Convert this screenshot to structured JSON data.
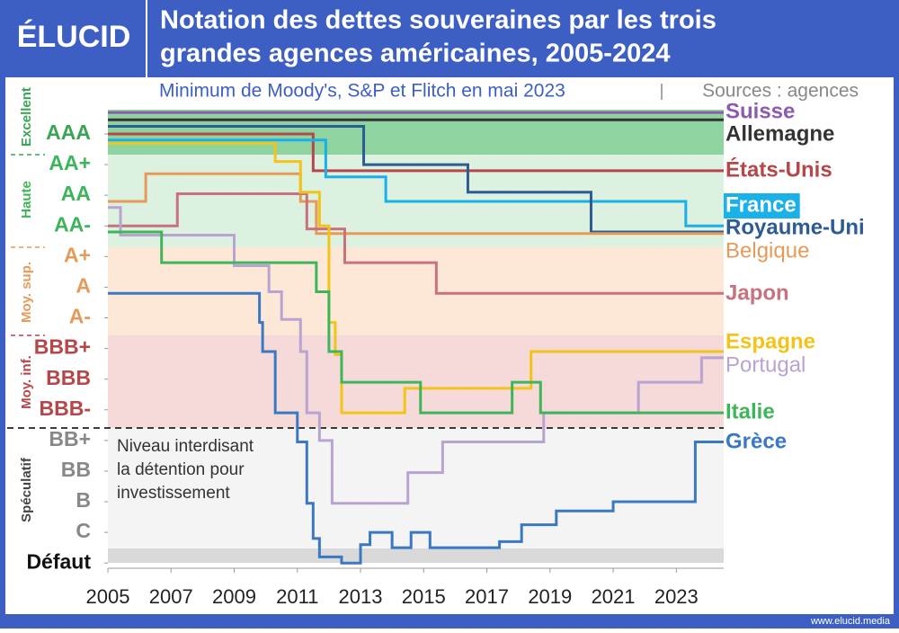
{
  "logo": "ÉLUCID",
  "footer": "www.elucid.media",
  "chart_data": {
    "type": "line",
    "step": "post",
    "title": [
      "Notation des dettes souveraines par les trois",
      "grandes agences américaines, 2005-2024"
    ],
    "subtitle": "Minimum de Moody's, S&P et Flitch en mai 2023",
    "source": "Sources : agences",
    "zones": [
      "Excellent",
      "Haute",
      "Moy. sup.",
      "Moy. inf.",
      "Spéculatif"
    ],
    "annotation": [
      "Niveau interdisant",
      "la détention pour",
      "investissement"
    ],
    "xlim": [
      2005,
      2024.5
    ],
    "xticks": [
      2005,
      2007,
      2009,
      2011,
      2013,
      2015,
      2017,
      2019,
      2021,
      2023
    ],
    "ylim": [
      -0.17,
      14.85
    ],
    "yticks": [
      {
        "value": 14,
        "label": "AAA"
      },
      {
        "value": 13,
        "label": "AA+"
      },
      {
        "value": 12,
        "label": "AA"
      },
      {
        "value": 11,
        "label": "AA-"
      },
      {
        "value": 10,
        "label": "A+"
      },
      {
        "value": 9,
        "label": "A"
      },
      {
        "value": 8,
        "label": "A-"
      },
      {
        "value": 7,
        "label": "BBB+"
      },
      {
        "value": 6,
        "label": "BBB"
      },
      {
        "value": 5,
        "label": "BBB-"
      },
      {
        "value": 4,
        "label": "BB+"
      },
      {
        "value": 3,
        "label": "BB"
      },
      {
        "value": 2,
        "label": "B"
      },
      {
        "value": 1,
        "label": "C"
      },
      {
        "value": 0,
        "label": "Défaut"
      }
    ],
    "series": [
      {
        "name": "Suisse",
        "color": "#8e5ab0",
        "x": [
          2005
        ],
        "values": [
          14.7
        ]
      },
      {
        "name": "Allemagne",
        "color": "#333333",
        "x": [
          2005
        ],
        "values": [
          14.46
        ]
      },
      {
        "name": "États-Unis",
        "color": "#b5474a",
        "x": [
          2005,
          2011.5
        ],
        "values": [
          14.0,
          12.8
        ]
      },
      {
        "name": "France",
        "color": "#1ab0e8",
        "x": [
          2005,
          2011.9,
          2013.8,
          2023.3
        ],
        "values": [
          13.8,
          12.6,
          11.8,
          11.0
        ]
      },
      {
        "name": "Royaume-Uni",
        "color": "#2d5b94",
        "x": [
          2005,
          2013.1,
          2016.4,
          2020.3
        ],
        "values": [
          14.25,
          13.0,
          12.1,
          10.8
        ]
      },
      {
        "name": "Belgique",
        "color": "#e69a5a",
        "x": [
          2005,
          2006.2,
          2011.1,
          2011.6
        ],
        "values": [
          11.8,
          12.7,
          11.8,
          10.75
        ]
      },
      {
        "name": "Japon",
        "color": "#c8727f",
        "x": [
          2005,
          2007.2,
          2011.3,
          2012.5,
          2015.4
        ],
        "values": [
          11.0,
          12.05,
          10.9,
          9.8,
          8.8
        ]
      },
      {
        "name": "Espagne",
        "color": "#f2c419",
        "x": [
          2005,
          2010.3,
          2011.1,
          2011.7,
          2012.0,
          2012.2,
          2012.4,
          2014.4,
          2018.4
        ],
        "values": [
          13.7,
          13.1,
          12.1,
          11.0,
          7.85,
          6.8,
          4.9,
          5.7,
          6.9
        ]
      },
      {
        "name": "Portugal",
        "color": "#b9a3d0",
        "x": [
          2005,
          2005.4,
          2009.0,
          2010.1,
          2010.5,
          2011.1,
          2011.3,
          2011.7,
          2012.1,
          2014.5,
          2015.6,
          2018.8,
          2021.8,
          2023.8
        ],
        "values": [
          11.6,
          10.7,
          9.7,
          8.85,
          7.95,
          6.9,
          4.9,
          4.0,
          1.95,
          2.95,
          3.95,
          4.9,
          5.9,
          6.7
        ]
      },
      {
        "name": "Italie",
        "color": "#3fb55a",
        "x": [
          2005,
          2006.7,
          2011.6,
          2012.0,
          2012.4,
          2014.9,
          2017.8,
          2018.7
        ],
        "values": [
          10.8,
          9.8,
          8.85,
          6.9,
          5.9,
          4.9,
          5.9,
          4.9
        ]
      },
      {
        "name": "Grèce",
        "color": "#3a78c2",
        "x": [
          2005,
          2009.8,
          2009.9,
          2010.3,
          2011.0,
          2011.3,
          2011.5,
          2011.7,
          2012.4,
          2013.0,
          2013.3,
          2014.0,
          2014.6,
          2015.2,
          2017.4,
          2018.1,
          2019.2,
          2021.0,
          2023.6
        ],
        "values": [
          8.8,
          7.85,
          6.9,
          4.9,
          3.95,
          1.95,
          0.8,
          0.2,
          0.0,
          0.6,
          1.0,
          0.5,
          1.0,
          0.5,
          0.7,
          1.25,
          1.7,
          2.0,
          3.95
        ]
      }
    ]
  }
}
